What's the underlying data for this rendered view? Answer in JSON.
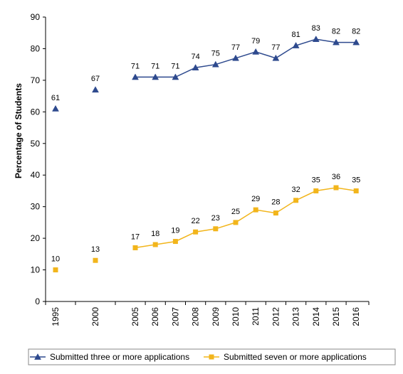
{
  "chart_data": {
    "type": "line",
    "title": "",
    "xlabel": "",
    "ylabel": "Percentage of Students",
    "ylim": [
      0,
      90
    ],
    "yticks": [
      0,
      10,
      20,
      30,
      40,
      50,
      60,
      70,
      80,
      90
    ],
    "categories": [
      "1995",
      "2000",
      "2005",
      "2006",
      "2007",
      "2008",
      "2009",
      "2010",
      "2011",
      "2012",
      "2013",
      "2014",
      "2015",
      "2016"
    ],
    "grid": false,
    "legend_position": "bottom",
    "series": [
      {
        "name": "Submitted three or more applications",
        "values": [
          61,
          67,
          71,
          71,
          71,
          74,
          75,
          77,
          79,
          77,
          81,
          83,
          82,
          82
        ],
        "labels": [
          "61",
          "67",
          "71",
          "71",
          "71",
          "74",
          "75",
          "77",
          "79",
          "77",
          "81",
          "83",
          "82",
          "82"
        ],
        "marker": "triangle",
        "color": "#2e4a8e",
        "connected_from_index": 2
      },
      {
        "name": "Submitted seven or more applications",
        "values": [
          10,
          13,
          17,
          18,
          19,
          22,
          23,
          25,
          29,
          28,
          32,
          35,
          36,
          35
        ],
        "labels": [
          "10",
          "13",
          "17",
          "18",
          "19",
          "22",
          "23",
          "25",
          "29",
          "28",
          "32",
          "35",
          "36",
          "35"
        ],
        "marker": "square",
        "color": "#f2b51b",
        "connected_from_index": 2
      }
    ]
  }
}
